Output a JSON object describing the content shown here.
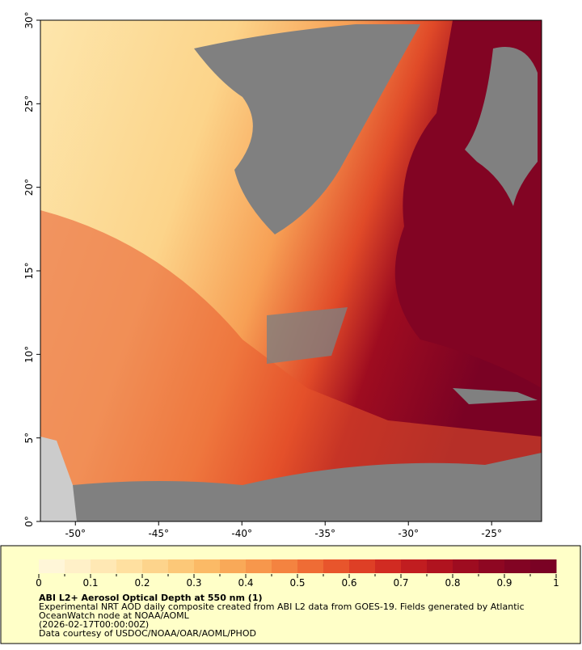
{
  "map": {
    "lon_range": [
      -52.1,
      -22
    ],
    "lat_range": [
      0,
      30
    ],
    "lon_ticks": [
      {
        "value": -50,
        "label": "-50°"
      },
      {
        "value": -45,
        "label": "-45°"
      },
      {
        "value": -40,
        "label": "-40°"
      },
      {
        "value": -35,
        "label": "-35°"
      },
      {
        "value": -30,
        "label": "-30°"
      },
      {
        "value": -25,
        "label": "-25°"
      }
    ],
    "lat_ticks": [
      {
        "value": 0,
        "label": "0°"
      },
      {
        "value": 5,
        "label": "5°"
      },
      {
        "value": 10,
        "label": "10°"
      },
      {
        "value": 15,
        "label": "15°"
      },
      {
        "value": 20,
        "label": "20°"
      },
      {
        "value": 25,
        "label": "25°"
      },
      {
        "value": 30,
        "label": "30°"
      }
    ]
  },
  "colorbar": {
    "range": [
      0,
      1
    ],
    "ticks": [
      0,
      0.1,
      0.2,
      0.3,
      0.4,
      0.5,
      0.6,
      0.7,
      0.8,
      0.9,
      1
    ],
    "colors": [
      "#fff6d8",
      "#fff0c8",
      "#ffe8b4",
      "#ffe0a0",
      "#fdd48c",
      "#fcc878",
      "#fbba66",
      "#f9a958",
      "#f7974c",
      "#f48340",
      "#ef6c35",
      "#e8552c",
      "#de3f26",
      "#d12b22",
      "#c11d20",
      "#b0131f",
      "#9e0c20",
      "#8e0722",
      "#820423",
      "#7a0224"
    ]
  },
  "caption": {
    "title": "ABI L2+ Aerosol Optical Depth at 550 nm (1)",
    "lines": [
      "Experimental NRT AOD daily composite created from ABI L2 data from GOES-19. Fields generated by Atlantic",
      "OceanWatch node at NOAA/AOML",
      "(2026-02-17T00:00:00Z)",
      "Data courtesy of USDOC/NOAA/OAR/AOML/PHOD"
    ]
  }
}
